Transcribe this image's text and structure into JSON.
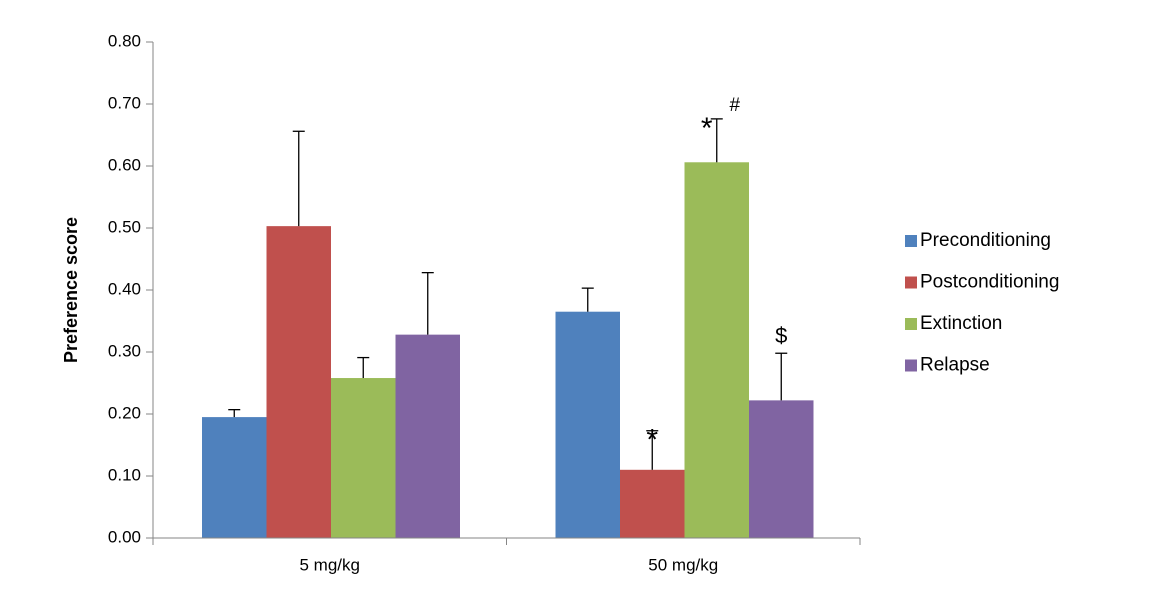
{
  "chart_data": {
    "type": "bar",
    "title": "",
    "xlabel": "",
    "ylabel": "Preference score",
    "ylim": [
      0,
      0.8
    ],
    "yticks": [
      "0.00",
      "0.10",
      "0.20",
      "0.30",
      "0.40",
      "0.50",
      "0.60",
      "0.70",
      "0.80"
    ],
    "grid": false,
    "legend_position": "right",
    "categories": [
      "5 mg/kg",
      "50 mg/kg"
    ],
    "series": [
      {
        "name": "Preconditioning",
        "color": "#4F81BD",
        "values": [
          0.195,
          0.365
        ],
        "errors": [
          0.012,
          0.038
        ]
      },
      {
        "name": "Postconditioning",
        "color": "#C0504D",
        "values": [
          0.503,
          0.11
        ],
        "errors": [
          0.153,
          0.063
        ]
      },
      {
        "name": "Extinction",
        "color": "#9BBB59",
        "values": [
          0.258,
          0.606
        ],
        "errors": [
          0.033,
          0.07
        ]
      },
      {
        "name": "Relapse",
        "color": "#8064A2",
        "values": [
          0.328,
          0.222
        ],
        "errors": [
          0.1,
          0.076
        ]
      }
    ],
    "annotations": [
      {
        "text": "*",
        "series": 1,
        "category": 1
      },
      {
        "text": "*",
        "series": 2,
        "category": 1
      },
      {
        "text": "#",
        "series": 2,
        "category": 1
      },
      {
        "text": "$",
        "series": 3,
        "category": 1
      }
    ]
  }
}
